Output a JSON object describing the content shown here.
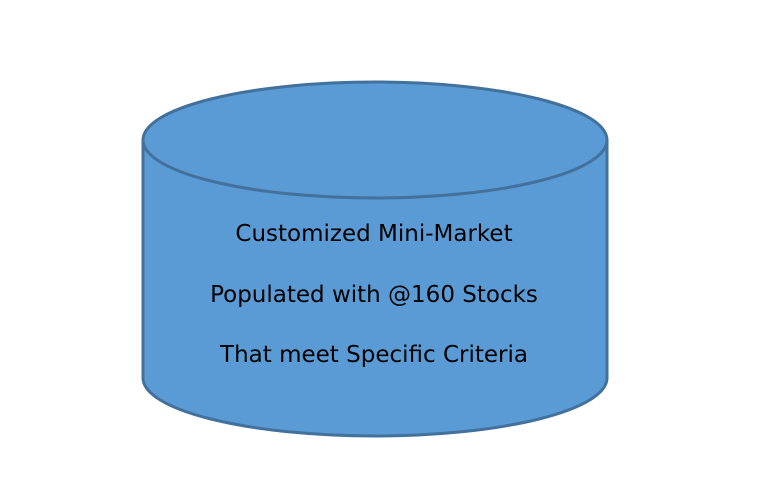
{
  "diagram": {
    "shape": "cylinder",
    "fill_color": "#5b9bd5",
    "stroke_color": "#41719c",
    "lines": [
      "Customized Mini-Market",
      "Populated with @160 Stocks",
      "That meet Specific Criteria"
    ]
  }
}
